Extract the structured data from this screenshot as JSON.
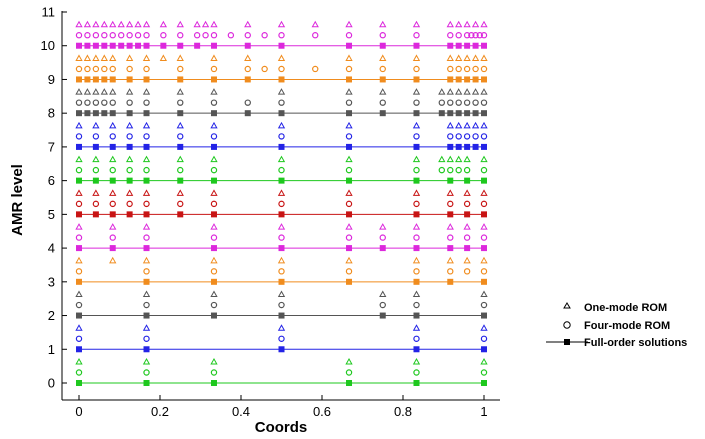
{
  "chart_data": {
    "type": "scatter",
    "xlabel": "Coords",
    "ylabel": "AMR level",
    "xlim": [
      0,
      1
    ],
    "ylim": [
      0,
      11
    ],
    "x_ticks": [
      "0",
      "0.2",
      "0.4",
      "0.6",
      "0.8",
      "1"
    ],
    "y_ticks": [
      "0",
      "1",
      "2",
      "3",
      "4",
      "5",
      "6",
      "7",
      "8",
      "9",
      "10",
      "11"
    ],
    "legend_position": "right",
    "legend": [
      {
        "label": "One-mode ROM",
        "marker": "triangle"
      },
      {
        "label": "Four-mode ROM",
        "marker": "circle"
      },
      {
        "label": "Full-order solutions",
        "marker": "square-line"
      }
    ],
    "series": [
      {
        "level": 0,
        "color": "#1ec81e",
        "full_order_x": [
          0,
          0.1667,
          0.3333,
          0.6667,
          0.8333,
          1
        ],
        "four_mode_x": [
          0,
          0.1667,
          0.3333,
          0.6667,
          0.8333,
          1
        ],
        "one_mode_x": [
          0,
          0.1667,
          0.3333,
          0.6667,
          0.8333,
          1
        ]
      },
      {
        "level": 1,
        "color": "#2323e6",
        "full_order_x": [
          0,
          0.1667,
          0.5,
          0.8333,
          1
        ],
        "four_mode_x": [
          0,
          0.1667,
          0.5,
          0.8333,
          1
        ],
        "one_mode_x": [
          0,
          0.1667,
          0.5,
          0.8333,
          1
        ]
      },
      {
        "level": 2,
        "color": "#555555",
        "full_order_x": [
          0,
          0.1667,
          0.3333,
          0.5,
          0.75,
          0.8333,
          1
        ],
        "four_mode_x": [
          0,
          0.1667,
          0.3333,
          0.5,
          0.75,
          0.8333,
          1
        ],
        "one_mode_x": [
          0,
          0.1667,
          0.3333,
          0.5,
          0.75,
          0.8333,
          1
        ]
      },
      {
        "level": 3,
        "color": "#f08c1e",
        "full_order_x": [
          0,
          0.1667,
          0.3333,
          0.5,
          0.6667,
          0.8333,
          0.9167,
          1
        ],
        "four_mode_x": [
          0,
          0.1667,
          0.3333,
          0.5,
          0.6667,
          0.8333,
          0.9167,
          0.9583,
          1
        ],
        "one_mode_x": [
          0,
          0.0833,
          0.1667,
          0.3333,
          0.5,
          0.6667,
          0.8333,
          0.9167,
          0.9583,
          1
        ]
      },
      {
        "level": 4,
        "color": "#dc28dc",
        "full_order_x": [
          0,
          0.0833,
          0.1667,
          0.3333,
          0.5,
          0.6667,
          0.75,
          0.8333,
          0.9167,
          0.9583,
          1
        ],
        "four_mode_x": [
          0,
          0.0833,
          0.1667,
          0.3333,
          0.5,
          0.6667,
          0.75,
          0.8333,
          0.9167,
          0.9583,
          1
        ],
        "one_mode_x": [
          0,
          0.0833,
          0.1667,
          0.3333,
          0.5,
          0.6667,
          0.75,
          0.8333,
          0.9167,
          0.9583,
          1
        ]
      },
      {
        "level": 5,
        "color": "#c81414",
        "full_order_x": [
          0,
          0.0417,
          0.0833,
          0.125,
          0.1667,
          0.25,
          0.3333,
          0.5,
          0.6667,
          0.8333,
          0.9167,
          0.9583,
          1
        ],
        "four_mode_x": [
          0,
          0.0417,
          0.0833,
          0.125,
          0.1667,
          0.25,
          0.3333,
          0.5,
          0.6667,
          0.8333,
          0.9167,
          0.9583,
          1
        ],
        "one_mode_x": [
          0,
          0.0417,
          0.0833,
          0.125,
          0.1667,
          0.25,
          0.3333,
          0.5,
          0.6667,
          0.8333,
          0.9167,
          0.9583,
          1
        ]
      },
      {
        "level": 6,
        "color": "#1ec81e",
        "full_order_x": [
          0,
          0.0417,
          0.0833,
          0.125,
          0.1667,
          0.25,
          0.3333,
          0.5,
          0.6667,
          0.8333,
          0.9167,
          0.9583,
          1
        ],
        "four_mode_x": [
          0,
          0.0417,
          0.0833,
          0.125,
          0.1667,
          0.25,
          0.3333,
          0.5,
          0.6667,
          0.8333,
          0.8958,
          0.9167,
          0.9375,
          0.9583,
          1
        ],
        "one_mode_x": [
          0,
          0.0417,
          0.0833,
          0.125,
          0.1667,
          0.25,
          0.3333,
          0.5,
          0.6667,
          0.8333,
          0.8958,
          0.9167,
          0.9375,
          0.9583,
          1
        ]
      },
      {
        "level": 7,
        "color": "#2323e6",
        "full_order_x": [
          0,
          0.0417,
          0.0833,
          0.125,
          0.1667,
          0.25,
          0.3333,
          0.5,
          0.6667,
          0.8333,
          0.9167,
          0.9375,
          0.9583,
          0.9792,
          1
        ],
        "four_mode_x": [
          0,
          0.0417,
          0.0833,
          0.125,
          0.1667,
          0.25,
          0.3333,
          0.5,
          0.6667,
          0.8333,
          0.9167,
          0.9375,
          0.9583,
          0.9792,
          1
        ],
        "one_mode_x": [
          0,
          0.0417,
          0.0833,
          0.125,
          0.1667,
          0.25,
          0.3333,
          0.5,
          0.6667,
          0.8333,
          0.9167,
          0.9375,
          0.9583,
          0.9792,
          1
        ]
      },
      {
        "level": 8,
        "color": "#555555",
        "full_order_x": [
          0,
          0.0208,
          0.0417,
          0.0625,
          0.0833,
          0.125,
          0.1667,
          0.25,
          0.3333,
          0.4167,
          0.5,
          0.6667,
          0.75,
          0.8333,
          0.8958,
          0.9167,
          0.9375,
          0.9583,
          0.9792,
          1
        ],
        "four_mode_x": [
          0,
          0.0208,
          0.0417,
          0.0625,
          0.0833,
          0.125,
          0.1667,
          0.25,
          0.3333,
          0.4167,
          0.5,
          0.6667,
          0.75,
          0.8333,
          0.8958,
          0.9167,
          0.9375,
          0.9583,
          0.9792,
          1
        ],
        "one_mode_x": [
          0,
          0.0208,
          0.0417,
          0.0625,
          0.0833,
          0.125,
          0.1667,
          0.25,
          0.3333,
          0.5,
          0.6667,
          0.75,
          0.8333,
          0.8958,
          0.9167,
          0.9375,
          0.9583,
          0.9792,
          1
        ]
      },
      {
        "level": 9,
        "color": "#f08c1e",
        "full_order_x": [
          0,
          0.0208,
          0.0417,
          0.0625,
          0.0833,
          0.125,
          0.1667,
          0.25,
          0.3333,
          0.4167,
          0.5,
          0.6667,
          0.75,
          0.8333,
          0.9167,
          0.9375,
          0.9583,
          0.9792,
          1
        ],
        "four_mode_x": [
          0,
          0.0208,
          0.0417,
          0.0625,
          0.0833,
          0.125,
          0.1667,
          0.25,
          0.3333,
          0.4167,
          0.4583,
          0.5,
          0.5833,
          0.6667,
          0.75,
          0.8333,
          0.9167,
          0.9375,
          0.9583,
          0.9792,
          1
        ],
        "one_mode_x": [
          0,
          0.0208,
          0.0417,
          0.0625,
          0.0833,
          0.125,
          0.1667,
          0.2083,
          0.25,
          0.3333,
          0.4167,
          0.5,
          0.6667,
          0.75,
          0.8333,
          0.9167,
          0.9375,
          0.9583,
          0.9792,
          1
        ]
      },
      {
        "level": 10,
        "color": "#dc28dc",
        "full_order_x": [
          0,
          0.0208,
          0.0417,
          0.0625,
          0.0833,
          0.1042,
          0.125,
          0.1458,
          0.1667,
          0.2083,
          0.25,
          0.2917,
          0.3333,
          0.4167,
          0.5,
          0.6667,
          0.75,
          0.8333,
          0.9167,
          0.9375,
          0.9583,
          0.9792,
          1
        ],
        "four_mode_x": [
          0,
          0.0208,
          0.0417,
          0.0625,
          0.0833,
          0.1042,
          0.125,
          0.1458,
          0.1667,
          0.2083,
          0.25,
          0.2917,
          0.3125,
          0.3333,
          0.375,
          0.4167,
          0.4583,
          0.5,
          0.5833,
          0.6667,
          0.75,
          0.8333,
          0.9167,
          0.9375,
          0.9583,
          0.9688,
          0.9792,
          0.9896,
          1
        ],
        "one_mode_x": [
          0,
          0.0208,
          0.0417,
          0.0625,
          0.0833,
          0.1042,
          0.125,
          0.1458,
          0.1667,
          0.2083,
          0.25,
          0.2917,
          0.3125,
          0.3333,
          0.4167,
          0.5,
          0.5833,
          0.6667,
          0.75,
          0.8333,
          0.9167,
          0.9375,
          0.9583,
          0.9792,
          1
        ]
      }
    ]
  }
}
